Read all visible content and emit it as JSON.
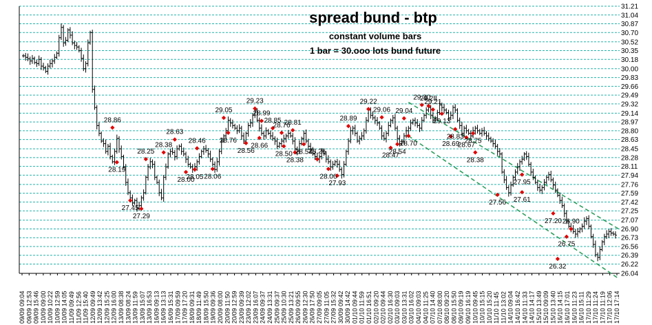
{
  "chart_data": {
    "type": "bar",
    "style": "ohlc-bars",
    "title": "spread bund - btp",
    "subtitle_lines": [
      "constant volume bars",
      "1 bar = 30.ooo lots bund future"
    ],
    "ylim": [
      26.04,
      31.21
    ],
    "y_ticks": [
      "31.21",
      "31.04",
      "30.87",
      "30.70",
      "30.52",
      "30.35",
      "30.18",
      "30.00",
      "29.83",
      "29.66",
      "29.49",
      "29.32",
      "29.14",
      "28.97",
      "28.80",
      "28.63",
      "28.45",
      "28.28",
      "28.11",
      "27.94",
      "27.76",
      "27.59",
      "27.42",
      "27.25",
      "27.07",
      "26.90",
      "26.73",
      "26.56",
      "26.39",
      "26.22",
      "26.04"
    ],
    "x_labels": [
      "09/09 09:04",
      "09/09 12:53",
      "09/09 15:46",
      "10/09 09:00",
      "10/09 10:22",
      "10/09 12:59",
      "10/09 14:05",
      "11/09 09:49",
      "11/09 12:56",
      "11/09 15:40",
      "12/09 09:49",
      "12/09 13:42",
      "12/09 15:25",
      "12/09 16:00",
      "13/09 08:38",
      "13/09 08:24",
      "13/09 11:59",
      "13/09 15:07",
      "13/09 16:53",
      "16/09 09:13",
      "16/09 13:13",
      "16/09 15:31",
      "17/09 09:59",
      "17/09 17:20",
      "18/09 09:31",
      "18/09 11:49",
      "18/09 15:50",
      "19/09 09:36",
      "20/09 08:00",
      "20/09 11:50",
      "20/09 12:59",
      "23/09 09:39",
      "23/09 12:02",
      "23/09 16:07",
      "24/09 09:37",
      "24/09 13:31",
      "25/09 09:37",
      "25/09 10:30",
      "25/09 13:21",
      "26/09 09:55",
      "26/09 12:30",
      "26/09 17:50",
      "27/09 09:05",
      "27/09 11:05",
      "27/09 15:32",
      "30/09 09:42",
      "30/09 14:42",
      "01/10 09:44",
      "01/10 11:59",
      "01/10 16:51",
      "02/10 09:20",
      "02/10 09:44",
      "02/10 16:30",
      "03/10 09:03",
      "03/10 13:31",
      "03/10 16:02",
      "04/10 09:03",
      "04/10 11:25",
      "07/10 14:40",
      "07/10 08:00",
      "08/10 09:20",
      "08/10 15:50",
      "09/10 09:19",
      "09/10 16:19",
      "10/10 09:45",
      "10/10 15:15",
      "10/10 15:20",
      "11/10 11:45",
      "11/10 13:02",
      "14/10 09:04",
      "14/10 16:42",
      "14/10 11:33",
      "14/10 14:17",
      "15/10 13:49",
      "15/10 09:09",
      "15/10 13:40",
      "16/10 14:15",
      "16/10 17:01",
      "16/10 11:23",
      "16/10 15:11",
      "17/10 11:29",
      "17/10 11:24",
      "17/10 11:19",
      "17/10 12:06",
      "17/10 17:14"
    ],
    "series": [
      {
        "close": [
          30.25,
          30.22,
          30.19,
          30.15,
          30.2,
          30.12,
          30.1,
          30.18,
          30.05,
          30.02,
          29.95,
          30.05,
          30.1,
          30.15,
          30.22,
          30.3,
          30.6,
          30.8,
          30.5,
          30.55,
          30.75,
          30.65,
          30.5,
          30.45,
          30.42,
          30.35,
          30.2,
          30.0,
          30.1,
          30.5,
          30.7,
          29.6,
          29.25,
          28.9,
          28.75,
          28.6,
          28.55,
          28.4,
          28.5,
          28.3,
          28.2,
          28.4,
          28.65,
          28.45,
          28.3,
          28.1,
          27.8,
          27.6,
          27.5,
          27.4,
          27.45,
          27.3,
          27.35,
          27.5,
          27.6,
          27.9,
          28.1,
          28.2,
          28.15,
          27.9,
          27.8,
          27.6,
          27.5,
          27.9,
          28.1,
          28.35,
          28.4,
          28.38,
          28.3,
          28.45,
          28.5,
          28.4,
          28.35,
          28.25,
          28.15,
          28.1,
          28.05,
          28.1,
          28.2,
          28.3,
          28.4,
          28.45,
          28.42,
          28.35,
          28.25,
          28.15,
          28.05,
          28.2,
          28.4,
          28.6,
          28.7,
          28.8,
          29.0,
          28.95,
          28.9,
          28.85,
          28.8,
          28.85,
          28.7,
          28.6,
          28.75,
          28.9,
          28.95,
          29.1,
          29.2,
          29.0,
          28.85,
          28.75,
          28.7,
          28.8,
          28.75,
          28.7,
          28.65,
          28.6,
          28.5,
          28.55,
          28.6,
          28.65,
          28.7,
          28.75,
          28.7,
          28.6,
          28.45,
          28.4,
          28.55,
          28.65,
          28.75,
          28.6,
          28.5,
          28.45,
          28.35,
          28.3,
          28.25,
          28.3,
          28.4,
          28.35,
          28.25,
          28.2,
          28.1,
          28.15,
          28.2,
          28.15,
          28.05,
          27.95,
          28.15,
          28.4,
          28.6,
          28.8,
          28.85,
          28.75,
          28.6,
          28.65,
          28.7,
          28.8,
          29.0,
          29.2,
          29.1,
          29.05,
          29.0,
          28.95,
          28.85,
          28.7,
          28.65,
          28.75,
          28.9,
          29.0,
          29.05,
          28.85,
          28.65,
          28.55,
          28.6,
          28.7,
          28.8,
          28.85,
          28.95,
          29.0,
          28.95,
          28.9,
          28.85,
          29.0,
          29.1,
          29.2,
          29.25,
          29.1,
          29.0,
          29.05,
          29.15,
          29.3,
          29.25,
          29.2,
          29.15,
          29.05,
          29.1,
          29.25,
          29.2,
          29.0,
          28.9,
          28.75,
          28.85,
          28.8,
          28.75,
          28.7,
          28.8,
          28.85,
          28.8,
          28.75,
          28.8,
          28.75,
          28.7,
          28.65,
          28.6,
          28.55,
          28.5,
          28.4,
          28.35,
          28.0,
          27.85,
          27.7,
          27.6,
          27.75,
          27.9,
          28.0,
          28.1,
          28.2,
          28.25,
          28.35,
          28.3,
          28.15,
          28.0,
          27.9,
          27.8,
          27.7,
          27.65,
          27.7,
          27.8,
          27.9,
          27.95,
          27.85,
          27.75,
          27.65,
          27.55,
          27.45,
          27.35,
          27.2,
          27.05,
          26.95,
          26.9,
          26.85,
          26.8,
          26.85,
          26.9,
          26.95,
          27.05,
          27.1,
          26.95,
          26.75,
          26.6,
          26.4,
          26.35,
          26.5,
          26.65,
          26.75,
          26.8,
          26.85,
          26.82,
          26.8,
          26.78
        ]
      }
    ],
    "annotations": [
      {
        "label": "28.86",
        "value": 28.86,
        "bar": 40
      },
      {
        "label": "28.19",
        "value": 28.19,
        "bar": 42
      },
      {
        "label": "28.63",
        "value": 28.63,
        "bar": 68
      },
      {
        "label": "28.38",
        "value": 28.38,
        "bar": 63
      },
      {
        "label": "28.25",
        "value": 28.25,
        "bar": 55
      },
      {
        "label": "27.45",
        "value": 27.45,
        "bar": 48
      },
      {
        "label": "27.29",
        "value": 27.29,
        "bar": 53
      },
      {
        "label": "28.46",
        "value": 28.46,
        "bar": 78
      },
      {
        "label": "28.05",
        "value": 28.05,
        "bar": 77
      },
      {
        "label": "28.00",
        "value": 28.0,
        "bar": 73
      },
      {
        "label": "28.06",
        "value": 28.06,
        "bar": 85
      },
      {
        "label": "29.05",
        "value": 29.05,
        "bar": 90
      },
      {
        "label": "28.76",
        "value": 28.76,
        "bar": 92
      },
      {
        "label": "28.56",
        "value": 28.56,
        "bar": 100
      },
      {
        "label": "29.23",
        "value": 29.23,
        "bar": 104
      },
      {
        "label": "28.99",
        "value": 28.99,
        "bar": 107
      },
      {
        "label": "28.66",
        "value": 28.66,
        "bar": 106
      },
      {
        "label": "28.85",
        "value": 28.85,
        "bar": 112
      },
      {
        "label": "28.50",
        "value": 28.5,
        "bar": 117
      },
      {
        "label": "28.76",
        "value": 28.76,
        "bar": 116
      },
      {
        "label": "28.81",
        "value": 28.81,
        "bar": 121
      },
      {
        "label": "28.38",
        "value": 28.38,
        "bar": 122
      },
      {
        "label": "28.54",
        "value": 28.54,
        "bar": 126
      },
      {
        "label": "28.25",
        "value": 28.25,
        "bar": 132
      },
      {
        "label": "28.06",
        "value": 28.06,
        "bar": 137
      },
      {
        "label": "27.93",
        "value": 27.93,
        "bar": 141
      },
      {
        "label": "28.89",
        "value": 28.89,
        "bar": 146
      },
      {
        "label": "29.22",
        "value": 29.22,
        "bar": 155
      },
      {
        "label": "29.06",
        "value": 29.06,
        "bar": 161
      },
      {
        "label": "28.47",
        "value": 28.47,
        "bar": 165
      },
      {
        "label": "28.54",
        "value": 28.54,
        "bar": 168
      },
      {
        "label": "29.04",
        "value": 29.04,
        "bar": 171
      },
      {
        "label": "28.70",
        "value": 28.7,
        "bar": 173
      },
      {
        "label": "29.30",
        "value": 29.3,
        "bar": 179
      },
      {
        "label": "29.28",
        "value": 29.28,
        "bar": 182
      },
      {
        "label": "29.21",
        "value": 29.21,
        "bar": 184
      },
      {
        "label": "29.13",
        "value": 29.13,
        "bar": 188
      },
      {
        "label": "28.69",
        "value": 28.69,
        "bar": 192
      },
      {
        "label": "28.83",
        "value": 28.83,
        "bar": 194
      },
      {
        "label": "28.67",
        "value": 28.67,
        "bar": 199
      },
      {
        "label": "28.75",
        "value": 28.75,
        "bar": 202
      },
      {
        "label": "28.38",
        "value": 28.38,
        "bar": 203
      },
      {
        "label": "27.56",
        "value": 27.56,
        "bar": 213
      },
      {
        "label": "27.95",
        "value": 27.95,
        "bar": 224
      },
      {
        "label": "27.61",
        "value": 27.61,
        "bar": 224
      },
      {
        "label": "27.20",
        "value": 27.2,
        "bar": 238
      },
      {
        "label": "26.90",
        "value": 26.9,
        "bar": 246
      },
      {
        "label": "26.32",
        "value": 26.32,
        "bar": 240
      },
      {
        "label": "26.75",
        "value": 26.75,
        "bar": 244
      }
    ],
    "channel_lines": [
      {
        "from_bar": 173,
        "from_value": 29.35,
        "to_bar": 255,
        "to_value": 26.9
      },
      {
        "from_bar": 173,
        "from_value": 28.7,
        "to_bar": 255,
        "to_value": 26.1
      }
    ],
    "grid": true,
    "colors": {
      "bars": "#000000",
      "grid": "#20b2aa",
      "markers": "#e00000",
      "channel": "#2e9e5e"
    }
  }
}
